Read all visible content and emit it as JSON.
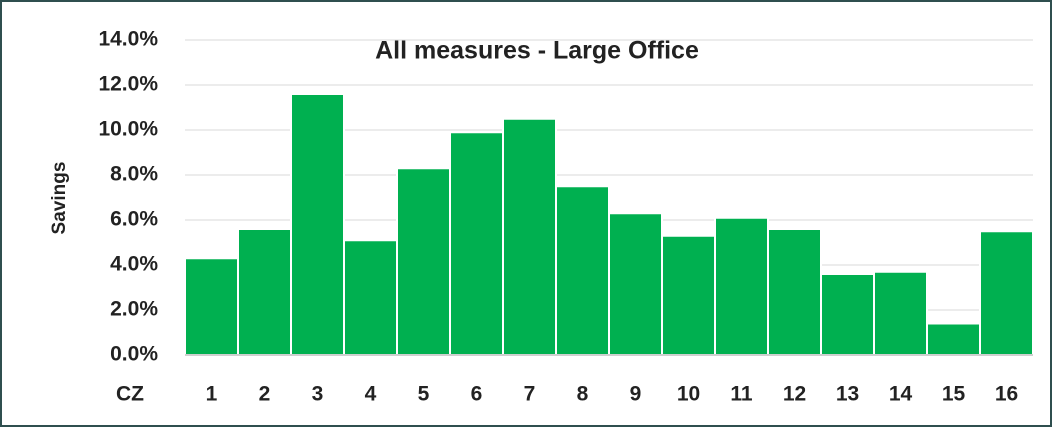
{
  "chart_data": {
    "type": "bar",
    "title": "All measures - Large Office",
    "x_label": "CZ",
    "y_label": "Savings",
    "categories": [
      "1",
      "2",
      "3",
      "4",
      "5",
      "6",
      "7",
      "8",
      "9",
      "10",
      "11",
      "12",
      "13",
      "14",
      "15",
      "16"
    ],
    "values": [
      4.3,
      5.6,
      11.6,
      5.1,
      8.3,
      9.9,
      10.5,
      7.5,
      6.3,
      5.3,
      6.1,
      5.6,
      3.6,
      3.7,
      1.4,
      5.5
    ],
    "color": "#00b050",
    "ylim": [
      0,
      14
    ],
    "yticks": [
      {
        "value": 0,
        "label": "0.0%"
      },
      {
        "value": 2,
        "label": "2.0%"
      },
      {
        "value": 4,
        "label": "4.0%"
      },
      {
        "value": 6,
        "label": "6.0%"
      },
      {
        "value": 8,
        "label": "8.0%"
      },
      {
        "value": 10,
        "label": "10.0%"
      },
      {
        "value": 12,
        "label": "12.0%"
      },
      {
        "value": 14,
        "label": "14.0%"
      }
    ],
    "grid": true
  }
}
